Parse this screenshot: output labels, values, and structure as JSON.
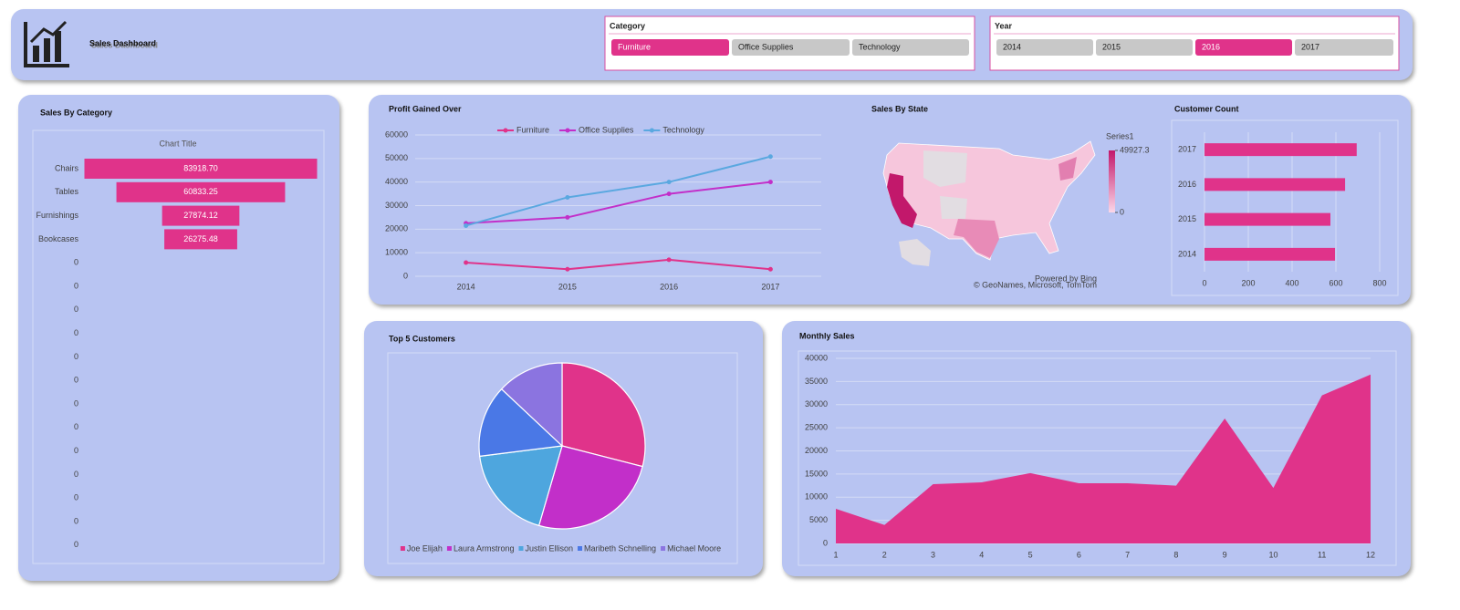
{
  "header": {
    "title": "Sales Dashboard"
  },
  "slicers": [
    {
      "title": "Category",
      "items": [
        "Furniture",
        "Office Supplies",
        "Technology"
      ],
      "selected_index": 0
    },
    {
      "title": "Year",
      "items": [
        "2014",
        "2015",
        "2016",
        "2017"
      ],
      "selected_index": 2
    }
  ],
  "chart_data": [
    {
      "type": "funnel",
      "title": "Sales By Category",
      "subtitle": "Chart Title",
      "categories": [
        "Chairs",
        "Tables",
        "Furnishings",
        "Bookcases",
        "0",
        "0",
        "0",
        "0",
        "0",
        "0",
        "0",
        "0",
        "0",
        "0",
        "0",
        "0",
        "0"
      ],
      "values": [
        83918.7,
        60833.25,
        27874.12,
        26275.48,
        null,
        null,
        null,
        null,
        null,
        null,
        null,
        null,
        null,
        null,
        null,
        null,
        null
      ],
      "value_labels": [
        "83918.70",
        "60833.25",
        "27874.12",
        "26275.48",
        null,
        null,
        null,
        null,
        null,
        null,
        null,
        null,
        null,
        null,
        null,
        null,
        null
      ],
      "color": "#e0338a"
    },
    {
      "type": "line",
      "title": "Profit Gained Over",
      "categories": [
        "2014",
        "2015",
        "2016",
        "2017"
      ],
      "series": [
        {
          "name": "Furniture",
          "color": "#e0338a",
          "values": [
            5800,
            3000,
            7000,
            3000
          ]
        },
        {
          "name": "Office Supplies",
          "color": "#c22fc9",
          "values": [
            22500,
            25000,
            35000,
            40000
          ]
        },
        {
          "name": "Technology",
          "color": "#5aa8e0",
          "values": [
            21500,
            33500,
            40000,
            50800
          ]
        }
      ],
      "ylim": [
        0,
        60000
      ],
      "yticks": [
        0,
        10000,
        20000,
        30000,
        40000,
        50000,
        60000
      ],
      "grid": true,
      "legend": "top"
    },
    {
      "type": "choropleth",
      "title": "Sales By State",
      "legend_title": "Series1",
      "clim": [
        0,
        49927.3
      ],
      "colorbar_ticks": [
        0,
        49927.3
      ],
      "color_range": [
        "#fbd7e8",
        "#c2186b"
      ],
      "notes": [
        "Powered by Bing",
        "© GeoNames, Microsoft, TomTom"
      ]
    },
    {
      "type": "hbar",
      "title": "Customer Count",
      "categories": [
        "2014",
        "2015",
        "2016",
        "2017"
      ],
      "values": [
        596,
        575,
        642,
        695
      ],
      "color": "#e0338a",
      "xlim": [
        0,
        800
      ],
      "xticks": [
        0,
        200,
        400,
        600,
        800
      ],
      "grid": true
    },
    {
      "type": "pie",
      "title": "Top 5 Customers",
      "categories": [
        "Joe Elijah",
        "Laura Armstrong",
        "Justin Ellison",
        "Maribeth Schnelling",
        "Michael Moore"
      ],
      "values": [
        29,
        25.5,
        18.5,
        14,
        13
      ],
      "colors": [
        "#e0338a",
        "#c22fc9",
        "#4ea6de",
        "#4a78e6",
        "#8b74e0"
      ],
      "legend": "bottom"
    },
    {
      "type": "area",
      "title": "Monthly Sales",
      "x": [
        1,
        2,
        3,
        4,
        5,
        6,
        7,
        8,
        9,
        10,
        11,
        12
      ],
      "values": [
        7500,
        4000,
        12800,
        13200,
        15200,
        13000,
        13000,
        12500,
        27000,
        12000,
        32000,
        36500
      ],
      "color": "#e0338a",
      "xlim": [
        1,
        12
      ],
      "xticks": [
        1,
        2,
        3,
        4,
        5,
        6,
        7,
        8,
        9,
        10,
        11,
        12
      ],
      "ylim": [
        0,
        40000
      ],
      "yticks": [
        0,
        5000,
        10000,
        15000,
        20000,
        25000,
        30000,
        35000,
        40000
      ],
      "grid": true
    }
  ]
}
